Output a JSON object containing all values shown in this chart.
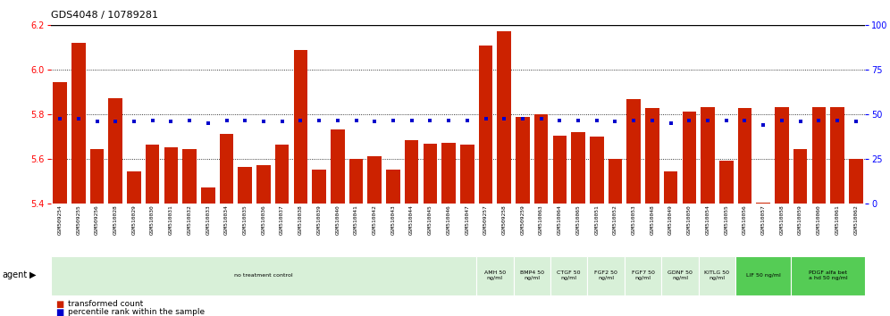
{
  "title": "GDS4048 / 10789281",
  "samples": [
    "GSM509254",
    "GSM509255",
    "GSM509256",
    "GSM510028",
    "GSM510029",
    "GSM510030",
    "GSM510031",
    "GSM510032",
    "GSM510033",
    "GSM510034",
    "GSM510035",
    "GSM510036",
    "GSM510037",
    "GSM510038",
    "GSM510039",
    "GSM510040",
    "GSM510041",
    "GSM510042",
    "GSM510043",
    "GSM510044",
    "GSM510045",
    "GSM510046",
    "GSM510047",
    "GSM509257",
    "GSM509258",
    "GSM509259",
    "GSM510063",
    "GSM510064",
    "GSM510065",
    "GSM510051",
    "GSM510052",
    "GSM510053",
    "GSM510048",
    "GSM510049",
    "GSM510050",
    "GSM510054",
    "GSM510055",
    "GSM510056",
    "GSM510057",
    "GSM510058",
    "GSM510059",
    "GSM510060",
    "GSM510061",
    "GSM510062"
  ],
  "bar_values": [
    5.945,
    6.12,
    5.645,
    5.875,
    5.545,
    5.665,
    5.655,
    5.645,
    5.475,
    5.715,
    5.565,
    5.575,
    5.665,
    6.09,
    5.555,
    5.735,
    5.6,
    5.615,
    5.555,
    5.685,
    5.67,
    5.675,
    5.665,
    6.11,
    6.175,
    5.79,
    5.8,
    5.705,
    5.72,
    5.7,
    5.6,
    5.87,
    5.83,
    5.545,
    5.815,
    5.835,
    5.595,
    5.83,
    5.405,
    5.835,
    5.645,
    5.835,
    5.835,
    5.6
  ],
  "percentile_values": [
    47.5,
    47.5,
    46.0,
    46.0,
    46.0,
    46.5,
    46.0,
    46.5,
    45.0,
    46.5,
    46.5,
    46.0,
    46.0,
    46.5,
    46.5,
    46.5,
    46.5,
    46.0,
    46.5,
    46.5,
    46.5,
    46.5,
    46.5,
    47.5,
    47.5,
    47.5,
    47.5,
    46.5,
    46.5,
    46.5,
    46.0,
    46.5,
    46.5,
    45.0,
    46.5,
    46.5,
    46.5,
    46.5,
    44.0,
    46.5,
    46.0,
    46.5,
    46.5,
    46.0
  ],
  "ylim_left": [
    5.4,
    6.2
  ],
  "ylim_right": [
    0,
    100
  ],
  "yticks_left": [
    5.4,
    5.6,
    5.8,
    6.0,
    6.2
  ],
  "yticks_right": [
    0,
    25,
    50,
    75,
    100
  ],
  "bar_color": "#cc2200",
  "dot_color": "#0000cc",
  "agent_groups": [
    {
      "label": "no treatment control",
      "start": 0,
      "end": 23,
      "color": "#d8f0d8"
    },
    {
      "label": "AMH 50\nng/ml",
      "start": 23,
      "end": 25,
      "color": "#d8f0d8"
    },
    {
      "label": "BMP4 50\nng/ml",
      "start": 25,
      "end": 27,
      "color": "#d8f0d8"
    },
    {
      "label": "CTGF 50\nng/ml",
      "start": 27,
      "end": 29,
      "color": "#d8f0d8"
    },
    {
      "label": "FGF2 50\nng/ml",
      "start": 29,
      "end": 31,
      "color": "#d8f0d8"
    },
    {
      "label": "FGF7 50\nng/ml",
      "start": 31,
      "end": 33,
      "color": "#d8f0d8"
    },
    {
      "label": "GDNF 50\nng/ml",
      "start": 33,
      "end": 35,
      "color": "#d8f0d8"
    },
    {
      "label": "KITLG 50\nng/ml",
      "start": 35,
      "end": 37,
      "color": "#d8f0d8"
    },
    {
      "label": "LIF 50 ng/ml",
      "start": 37,
      "end": 40,
      "color": "#55cc55"
    },
    {
      "label": "PDGF alfa bet\na hd 50 ng/ml",
      "start": 40,
      "end": 44,
      "color": "#55cc55"
    }
  ]
}
